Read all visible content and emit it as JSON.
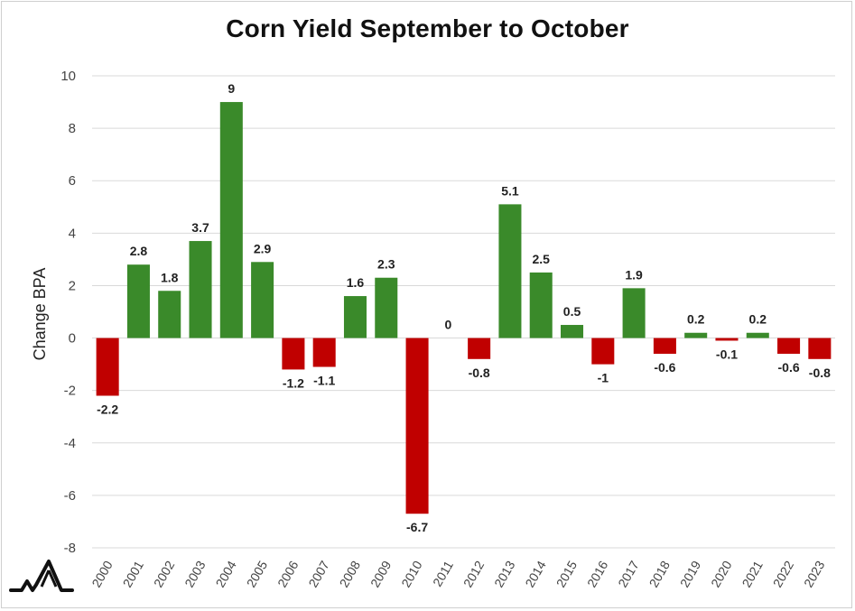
{
  "chart_data": {
    "type": "bar",
    "title": "Corn Yield September to October",
    "xlabel": "",
    "ylabel": "Change BPA",
    "ylim": [
      -8,
      10
    ],
    "yticks": [
      10,
      8,
      6,
      4,
      2,
      0,
      -2,
      -4,
      -6,
      -8
    ],
    "grid": true,
    "legend": "none",
    "categories": [
      "2000",
      "2001",
      "2002",
      "2003",
      "2004",
      "2005",
      "2006",
      "2007",
      "2008",
      "2009",
      "2010",
      "2011",
      "2012",
      "2013",
      "2014",
      "2015",
      "2016",
      "2017",
      "2018",
      "2019",
      "2020",
      "2021",
      "2022",
      "2023"
    ],
    "values": [
      -2.2,
      2.8,
      1.8,
      3.7,
      9,
      2.9,
      -1.2,
      -1.1,
      1.6,
      2.3,
      -6.7,
      0,
      -0.8,
      5.1,
      2.5,
      0.5,
      -1,
      1.9,
      -0.6,
      0.2,
      -0.1,
      0.2,
      -0.6,
      -0.8
    ],
    "colors": {
      "positive": "#3a8a2a",
      "negative": "#c00000"
    }
  },
  "logo": {
    "icon": "mountain-pulse-logo-icon"
  }
}
